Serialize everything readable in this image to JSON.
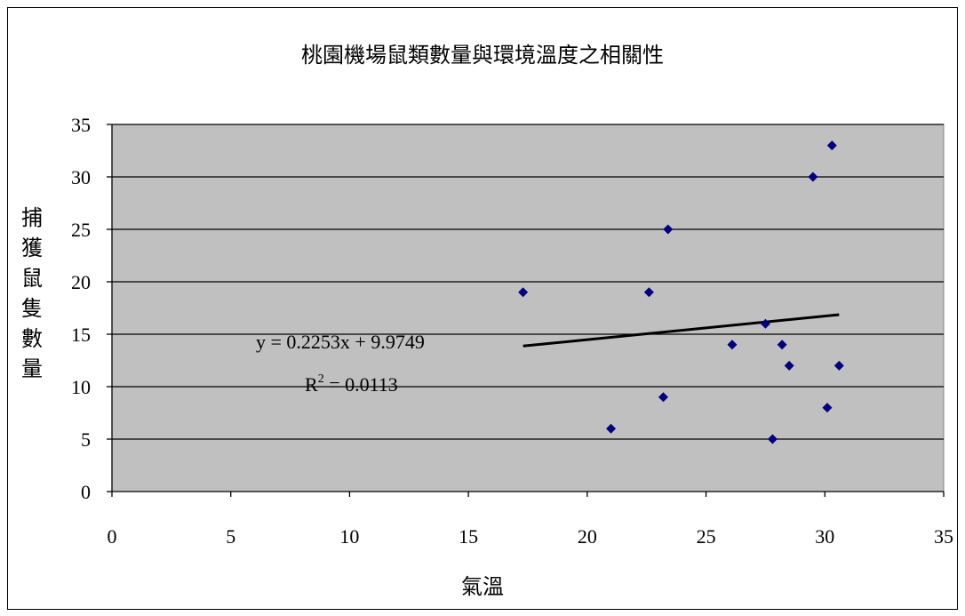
{
  "chart_data": {
    "type": "scatter",
    "title": "桃園機場鼠類數量與環境溫度之相關性",
    "xlabel": "氣溫",
    "ylabel": "捕獲鼠隻數量",
    "xlim": [
      0,
      35
    ],
    "ylim": [
      0,
      35
    ],
    "xticks": [
      0,
      5,
      10,
      15,
      20,
      25,
      30,
      35
    ],
    "yticks": [
      0,
      5,
      10,
      15,
      20,
      25,
      30,
      35
    ],
    "grid": "horizontal",
    "plot_background": "#c0c0c0",
    "marker_color": "#000080",
    "marker": "diamond",
    "points": [
      {
        "x": 17.3,
        "y": 19
      },
      {
        "x": 21.0,
        "y": 6
      },
      {
        "x": 22.6,
        "y": 19
      },
      {
        "x": 23.2,
        "y": 9
      },
      {
        "x": 23.4,
        "y": 25
      },
      {
        "x": 26.1,
        "y": 14
      },
      {
        "x": 27.5,
        "y": 16
      },
      {
        "x": 27.8,
        "y": 5
      },
      {
        "x": 28.2,
        "y": 14
      },
      {
        "x": 28.5,
        "y": 12
      },
      {
        "x": 29.5,
        "y": 30
      },
      {
        "x": 30.1,
        "y": 8
      },
      {
        "x": 30.3,
        "y": 33
      },
      {
        "x": 30.6,
        "y": 12
      }
    ],
    "trendline": {
      "slope": 0.2253,
      "intercept": 9.9749,
      "x_range": [
        17.3,
        30.6
      ],
      "equation": "y = 0.2253x + 9.9749",
      "r2_label": "R",
      "r2_exp": "2",
      "r2_value": " = 0.0113"
    }
  }
}
